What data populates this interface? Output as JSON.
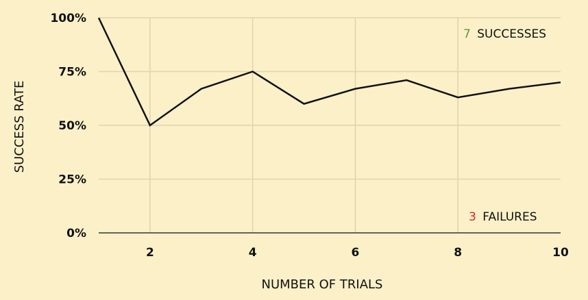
{
  "chart_data": {
    "type": "line",
    "x": [
      1,
      2,
      3,
      4,
      5,
      6,
      7,
      8,
      9,
      10
    ],
    "series": [
      {
        "values": [
          100,
          50,
          67,
          75,
          60,
          67,
          71,
          63,
          67,
          70
        ]
      }
    ],
    "xlabel": "NUMBER OF TRIALS",
    "ylabel": "SUCCESS RATE",
    "xlim": [
      1,
      10
    ],
    "ylim": [
      0,
      100
    ],
    "x_ticks": [
      2,
      4,
      6,
      8,
      10
    ],
    "y_ticks": [
      {
        "value": 0,
        "label": "0%"
      },
      {
        "value": 25,
        "label": "25%"
      },
      {
        "value": 50,
        "label": "50%"
      },
      {
        "value": 75,
        "label": "75%"
      },
      {
        "value": 100,
        "label": "100%"
      }
    ],
    "grid": true,
    "annotations": {
      "successes": {
        "count": "7",
        "text": "SUCCESSES",
        "count_color": "#5a9a3a"
      },
      "failures": {
        "count": "3",
        "text": "FAILURES",
        "count_color": "#e02020"
      }
    },
    "colors": {
      "background": "#fcf0c8",
      "grid": "#e0d3ac",
      "line": "#111111"
    }
  }
}
